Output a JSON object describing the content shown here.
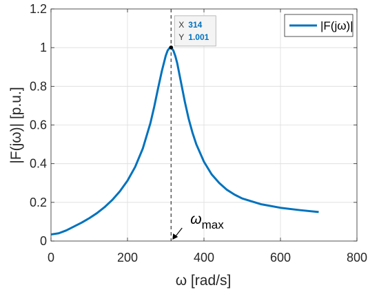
{
  "chart_data": {
    "type": "line",
    "xlabel": "ω [rad/s]",
    "ylabel": "|F(jω)|  [p.u.]",
    "xlim": [
      0,
      800
    ],
    "ylim": [
      0,
      1.2
    ],
    "xticks": [
      "0",
      "200",
      "400",
      "600",
      "800"
    ],
    "yticks": [
      "0",
      "0.2",
      "0.4",
      "0.6",
      "0.8",
      "1",
      "1.2"
    ],
    "grid": true,
    "legend_position": "top-right",
    "series": [
      {
        "name": "|F(jω)|",
        "color": "#0072BD",
        "x": [
          0,
          20,
          40,
          60,
          80,
          100,
          120,
          140,
          160,
          180,
          200,
          220,
          240,
          260,
          270,
          280,
          290,
          300,
          305,
          310,
          314,
          320,
          325,
          330,
          340,
          350,
          360,
          370,
          380,
          400,
          420,
          440,
          460,
          480,
          500,
          550,
          600,
          650,
          700
        ],
        "values": [
          0.034,
          0.04,
          0.055,
          0.075,
          0.095,
          0.118,
          0.144,
          0.175,
          0.212,
          0.257,
          0.312,
          0.383,
          0.478,
          0.61,
          0.695,
          0.79,
          0.88,
          0.958,
          0.985,
          0.998,
          1.001,
          0.985,
          0.957,
          0.92,
          0.82,
          0.72,
          0.632,
          0.56,
          0.5,
          0.41,
          0.345,
          0.3,
          0.265,
          0.24,
          0.22,
          0.19,
          0.172,
          0.16,
          0.15
        ]
      }
    ],
    "annotations": {
      "vline_x": 314,
      "marker": {
        "x": 314,
        "y": 1.001
      },
      "datatip": {
        "x_key": "X",
        "x_val": "314",
        "y_key": "Y",
        "y_val": "1.001"
      },
      "omega_symbol": "ω",
      "omega_subscript": "max"
    }
  }
}
